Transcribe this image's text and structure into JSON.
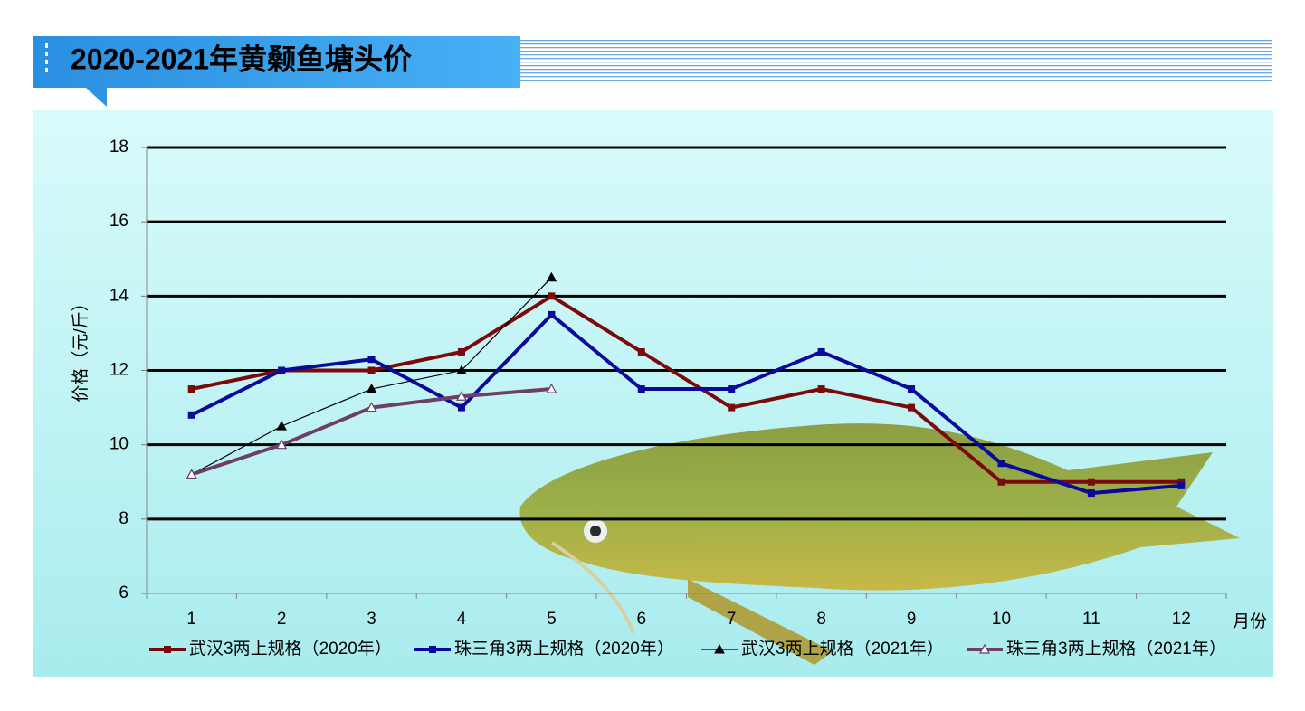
{
  "chart_data": {
    "type": "line",
    "title": "2020-2021年黄颡鱼塘头价",
    "y_label": "价格（元/斤）",
    "x_label": "月份",
    "categories": [
      "1",
      "2",
      "3",
      "4",
      "5",
      "6",
      "7",
      "8",
      "9",
      "10",
      "11",
      "12"
    ],
    "series": [
      {
        "name": "武汉3两上规格（2020年）",
        "color": "#7a0a0a",
        "marker": "square",
        "values": [
          11.5,
          12,
          12,
          12.5,
          14,
          12.5,
          11,
          11.5,
          11,
          9,
          9,
          9
        ]
      },
      {
        "name": "珠三角3两上规格（2020年）",
        "color": "#0a0a9a",
        "marker": "square",
        "values": [
          10.8,
          12,
          12.3,
          11,
          13.5,
          11.5,
          11.5,
          12.5,
          11.5,
          9.5,
          8.7,
          8.9
        ]
      },
      {
        "name": "武汉3两上规格（2021年）",
        "color": "#000000",
        "marker": "triangle",
        "values": [
          9.2,
          10.5,
          11.5,
          12,
          14.5,
          null,
          null,
          null,
          null,
          null,
          null,
          null
        ]
      },
      {
        "name": "珠三角3两上规格（2021年）",
        "color": "#6e3f66",
        "marker": "triangle-open",
        "values": [
          9.2,
          10,
          11,
          11.3,
          11.5,
          null,
          null,
          null,
          null,
          null,
          null,
          null
        ]
      }
    ],
    "ylim": [
      6,
      18
    ],
    "yticks": [
      6,
      8,
      10,
      12,
      14,
      16,
      18
    ],
    "grid": true,
    "legend": "bottom"
  }
}
